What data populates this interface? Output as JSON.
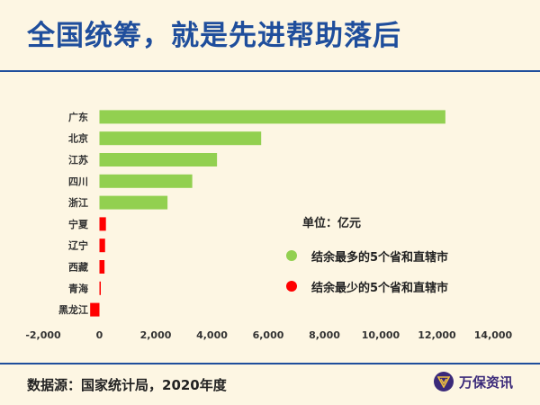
{
  "title": "全国统筹，就是先进帮助落后",
  "source": "数据源：国家统计局，2020年度",
  "brand": {
    "name": "万保资讯",
    "logo_icon": "w-shield-logo"
  },
  "colors": {
    "green": "#92d050",
    "red": "#ff0000",
    "title": "#1f4e9c",
    "background": "#fdf6e3"
  },
  "legend": {
    "unit": "单位：亿元",
    "items": [
      {
        "label": "结余最多的5个省和直辖市",
        "color": "#92d050"
      },
      {
        "label": "结余最少的5个省和直辖市",
        "color": "#ff0000"
      }
    ]
  },
  "chart_data": {
    "type": "bar",
    "orientation": "horizontal",
    "title": "",
    "xlabel": "",
    "ylabel": "",
    "xlim": [
      -2000,
      14000
    ],
    "ticks": [
      -2000,
      0,
      2000,
      4000,
      6000,
      8000,
      10000,
      12000,
      14000
    ],
    "tick_labels": [
      "-2,000",
      "0",
      "2,000",
      "4,000",
      "6,000",
      "8,000",
      "10,000",
      "12,000",
      "14,000"
    ],
    "categories": [
      "广东",
      "北京",
      "江苏",
      "四川",
      "浙江",
      "宁夏",
      "辽宁",
      "西藏",
      "青海",
      "黑龙江"
    ],
    "values": [
      12300,
      5750,
      4180,
      3300,
      2420,
      230,
      200,
      180,
      40,
      -330
    ],
    "groups": [
      "top",
      "top",
      "top",
      "top",
      "top",
      "bottom",
      "bottom",
      "bottom",
      "bottom",
      "bottom"
    ],
    "grid": false,
    "legend_position": "right"
  }
}
